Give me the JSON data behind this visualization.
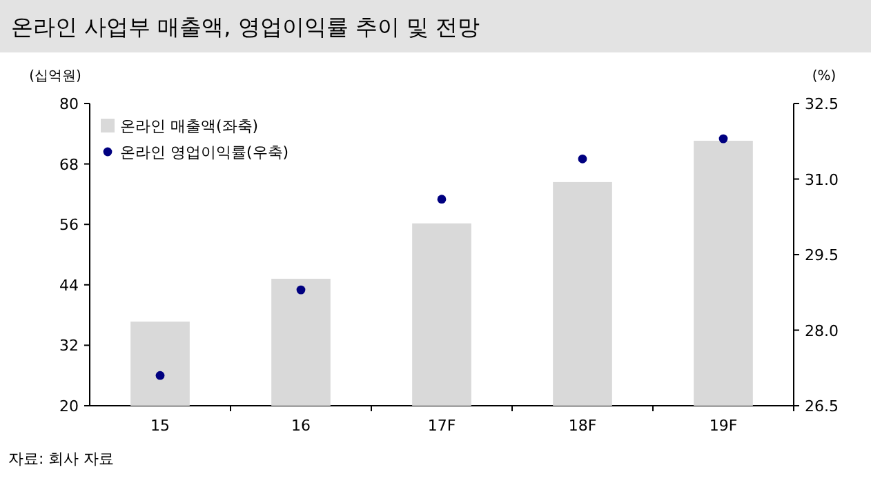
{
  "chart_data": {
    "type": "bar",
    "title": "온라인 사업부 매출액, 영업이익률 추이 및 전망",
    "ylabel": "(십억원)",
    "y2label": "(%)",
    "categories": [
      "15",
      "16",
      "17F",
      "18F",
      "19F"
    ],
    "series": [
      {
        "name": "온라인 매출액(좌축)",
        "color": "#d9d9d9",
        "values": [
          36.7,
          45.2,
          56.2,
          64.4,
          72.6
        ]
      },
      {
        "name": "온라인 영업이익률(우축)",
        "type": "scatter",
        "axis": "y2",
        "color": "#000080",
        "values": [
          27.1,
          28.8,
          30.6,
          31.4,
          31.8
        ]
      }
    ],
    "ylim": [
      20,
      80
    ],
    "yticks": [
      20,
      32,
      44,
      56,
      68,
      80
    ],
    "y2lim": [
      26.5,
      32.5
    ],
    "y2ticks": [
      26.5,
      {
        "value": 28,
        "label": "28.0"
      },
      29.5,
      {
        "value": 31,
        "label": "31.0"
      },
      32.5
    ],
    "marker": "circle",
    "legend": "top left",
    "annotations": [
      "자료: 회사 자료"
    ]
  }
}
